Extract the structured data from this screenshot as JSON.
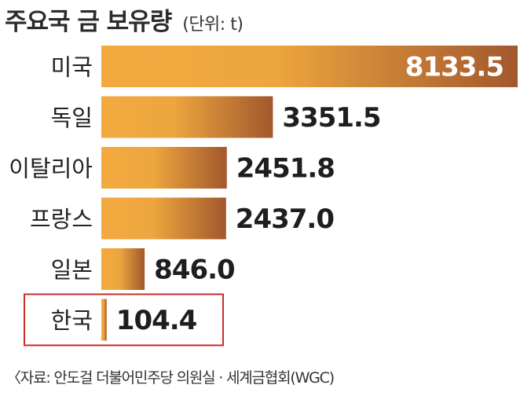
{
  "header": {
    "title": "주요국 금 보유량",
    "unit": "(단위: t)"
  },
  "source": "〈자료: 안도걸 더불어민주당 의원실 · 세계금협회(WGC)",
  "colors": {
    "bar_light": "#f2aa40",
    "bar_dark": "#a2582d",
    "highlight_box": "#cc2b2b",
    "label_text": "#222222",
    "value_text": "#1e1e1e",
    "value_text_inside": "#ffffff"
  },
  "chart_data": {
    "type": "bar",
    "orientation": "horizontal",
    "title": "주요국 금 보유량",
    "unit": "t",
    "categories": [
      "미국",
      "독일",
      "이탈리아",
      "프랑스",
      "일본",
      "한국"
    ],
    "values": [
      8133.5,
      3351.5,
      2451.8,
      2437.0,
      846.0,
      104.4
    ],
    "value_labels": [
      "8133.5",
      "3351.5",
      "2451.8",
      "2437.0",
      "846.0",
      "104.4"
    ],
    "highlighted_category": "한국",
    "xlim": [
      0,
      8133.5
    ],
    "grid": false,
    "legend": "none"
  }
}
